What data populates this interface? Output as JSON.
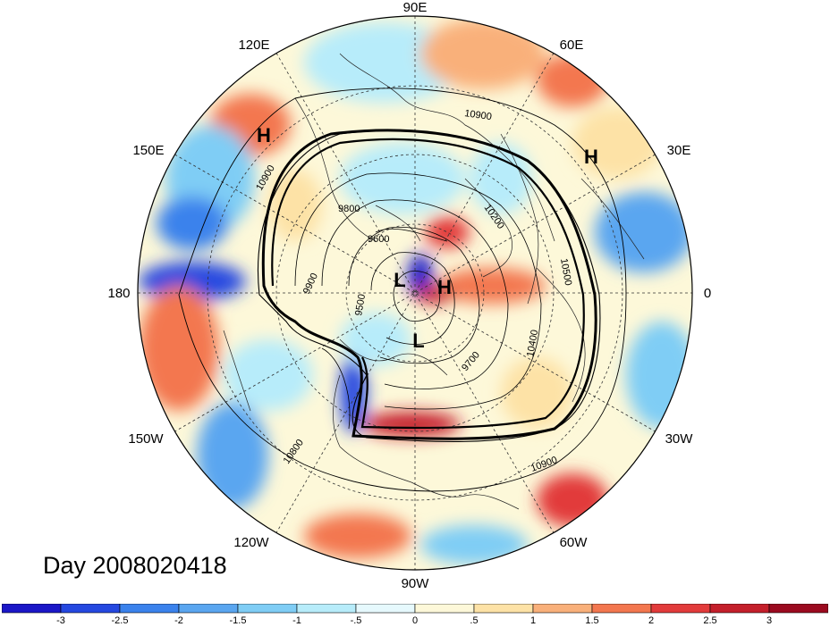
{
  "title": "Day 2008020418",
  "longitude_labels": [
    "90E",
    "60E",
    "30E",
    "0",
    "30W",
    "60W",
    "90W",
    "120W",
    "150W",
    "180",
    "150E",
    "120E"
  ],
  "pressure_labels": [
    "H",
    "H",
    "L",
    "H",
    "L"
  ],
  "contour_labels": [
    "10900",
    "10900",
    "9800",
    "9600",
    "9900",
    "9500",
    "10200",
    "10500",
    "9700",
    "10400",
    "10800",
    "10900"
  ],
  "colorbar": {
    "tick_labels": [
      "-3",
      "-2.5",
      "-2",
      "-1.5",
      "-1",
      "-.5",
      "0",
      ".5",
      "1",
      "1.5",
      "2",
      "2.5",
      "3"
    ],
    "colors": [
      "#1b17c7",
      "#2548e0",
      "#3b82ec",
      "#5aa6f0",
      "#7fcdf5",
      "#b7ecfa",
      "#e6f9fd",
      "#fdf8d9",
      "#fde2a6",
      "#f9b07a",
      "#f3774f",
      "#e23b3b",
      "#c41f2b",
      "#9b0a1f"
    ]
  }
}
